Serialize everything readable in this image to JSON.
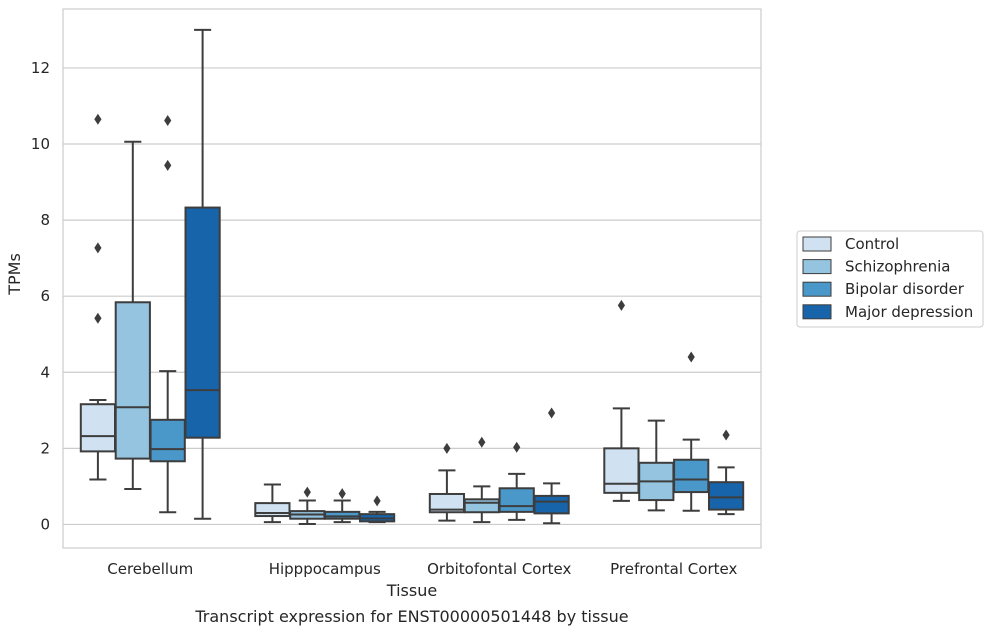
{
  "chart_data": {
    "type": "box",
    "title": "",
    "caption": "Transcript expression for ENST00000501448 by tissue",
    "xlabel": "Tissue",
    "ylabel": "TPMs",
    "ylim": [
      -0.62,
      13.55
    ],
    "yticks": [
      0,
      2,
      4,
      6,
      8,
      10,
      12
    ],
    "grid": true,
    "legend_position": "right",
    "categories": [
      "Cerebellum",
      "Hipppocampus",
      "Orbitofontal Cortex",
      "Prefrontal Cortex"
    ],
    "series": [
      {
        "name": "Control",
        "color": "#d0e1f2",
        "boxes": [
          {
            "whisker_low": 1.18,
            "q1": 1.92,
            "median": 2.32,
            "q3": 3.16,
            "whisker_high": 3.27,
            "outliers": [
              5.42,
              7.27,
              10.65
            ]
          },
          {
            "whisker_low": 0.06,
            "q1": 0.22,
            "median": 0.3,
            "q3": 0.56,
            "whisker_high": 1.05,
            "outliers": []
          },
          {
            "whisker_low": 0.1,
            "q1": 0.32,
            "median": 0.39,
            "q3": 0.8,
            "whisker_high": 1.42,
            "outliers": [
              2.0
            ]
          },
          {
            "whisker_low": 0.62,
            "q1": 0.83,
            "median": 1.07,
            "q3": 2.0,
            "whisker_high": 3.05,
            "outliers": [
              5.76
            ]
          }
        ]
      },
      {
        "name": "Schizophrenia",
        "color": "#94c4df",
        "boxes": [
          {
            "whisker_low": 0.93,
            "q1": 1.73,
            "median": 3.08,
            "q3": 5.84,
            "whisker_high": 10.06,
            "outliers": []
          },
          {
            "whisker_low": 0.01,
            "q1": 0.15,
            "median": 0.26,
            "q3": 0.35,
            "whisker_high": 0.63,
            "outliers": [
              0.85
            ]
          },
          {
            "whisker_low": 0.06,
            "q1": 0.32,
            "median": 0.57,
            "q3": 0.66,
            "whisker_high": 1.0,
            "outliers": [
              2.16
            ]
          },
          {
            "whisker_low": 0.37,
            "q1": 0.64,
            "median": 1.13,
            "q3": 1.62,
            "whisker_high": 2.73,
            "outliers": []
          }
        ]
      },
      {
        "name": "Bipolar disorder",
        "color": "#4a98c9",
        "boxes": [
          {
            "whisker_low": 0.32,
            "q1": 1.66,
            "median": 1.98,
            "q3": 2.75,
            "whisker_high": 4.03,
            "outliers": [
              9.44,
              10.62
            ]
          },
          {
            "whisker_low": 0.06,
            "q1": 0.15,
            "median": 0.21,
            "q3": 0.33,
            "whisker_high": 0.63,
            "outliers": [
              0.81
            ]
          },
          {
            "whisker_low": 0.12,
            "q1": 0.33,
            "median": 0.48,
            "q3": 0.95,
            "whisker_high": 1.33,
            "outliers": [
              2.03
            ]
          },
          {
            "whisker_low": 0.36,
            "q1": 0.85,
            "median": 1.18,
            "q3": 1.7,
            "whisker_high": 2.23,
            "outliers": [
              4.4
            ]
          }
        ]
      },
      {
        "name": "Major depression",
        "color": "#1764ab",
        "boxes": [
          {
            "whisker_low": 0.15,
            "q1": 2.28,
            "median": 3.53,
            "q3": 8.33,
            "whisker_high": 13.0,
            "outliers": []
          },
          {
            "whisker_low": 0.06,
            "q1": 0.08,
            "median": 0.16,
            "q3": 0.27,
            "whisker_high": 0.33,
            "outliers": [
              0.62
            ]
          },
          {
            "whisker_low": 0.03,
            "q1": 0.29,
            "median": 0.6,
            "q3": 0.75,
            "whisker_high": 1.08,
            "outliers": [
              2.93
            ]
          },
          {
            "whisker_low": 0.27,
            "q1": 0.39,
            "median": 0.71,
            "q3": 1.11,
            "whisker_high": 1.5,
            "outliers": [
              2.35
            ]
          }
        ]
      }
    ]
  }
}
